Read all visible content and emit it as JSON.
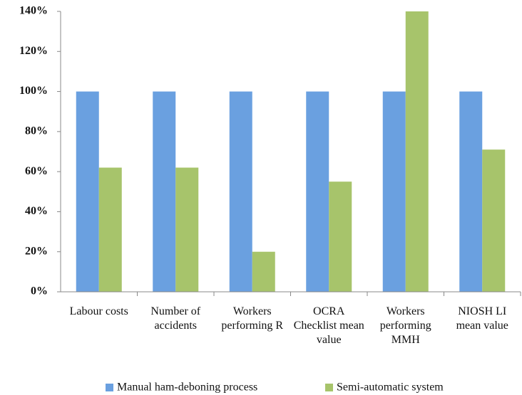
{
  "chart_data": {
    "type": "bar",
    "categories": [
      "Labour costs",
      "Number of accidents",
      "Workers performing R",
      "OCRA Checklist mean value",
      "Workers performing MMH",
      "NIOSH LI mean value"
    ],
    "series": [
      {
        "name": "Manual ham-deboning process",
        "color": "#6aa0e0",
        "values": [
          100,
          100,
          100,
          100,
          100,
          100
        ]
      },
      {
        "name": "Semi-automatic system",
        "color": "#a7c46b",
        "values": [
          62,
          62,
          20,
          55,
          140,
          71
        ]
      }
    ],
    "ylim": [
      0,
      140
    ],
    "yticks": [
      {
        "value": 0,
        "label": "0%"
      },
      {
        "value": 20,
        "label": "20%"
      },
      {
        "value": 40,
        "label": "40%"
      },
      {
        "value": 60,
        "label": "60%"
      },
      {
        "value": 80,
        "label": "80%"
      },
      {
        "value": 100,
        "label": "100%"
      },
      {
        "value": 120,
        "label": "120%"
      },
      {
        "value": 140,
        "label": "140%"
      }
    ],
    "grid": false,
    "legend": "bottom"
  }
}
